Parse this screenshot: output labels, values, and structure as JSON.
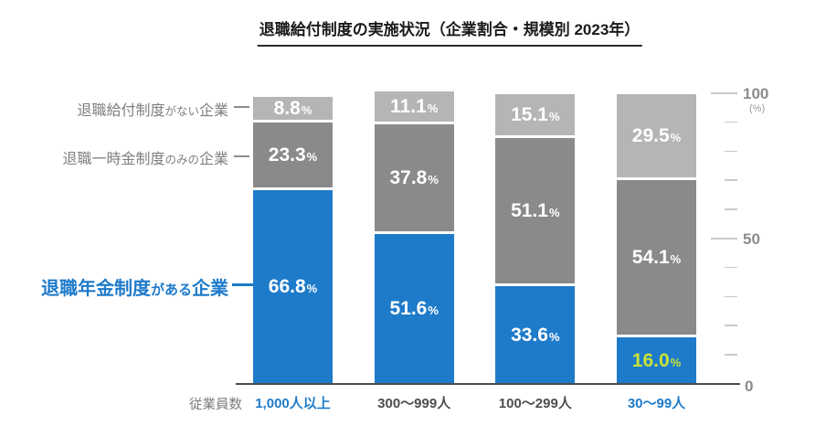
{
  "title": "退職給付制度の実施状況（企業割合・規模別 2023年）",
  "percent_suffix": "%",
  "legend": {
    "no_plan": {
      "part1": "退職給付制度",
      "part2": "がない",
      "part3": "企業"
    },
    "lump_sum_only": {
      "part1": "退職一時金制度",
      "part2": "のみの",
      "part3": "企業"
    },
    "pension": {
      "part1": "退職年金制度",
      "part2": "がある",
      "part3": "企業"
    }
  },
  "x_axis": {
    "label": "従業員数"
  },
  "y_axis": {
    "top": "100",
    "unit": "(%)",
    "mid": "50",
    "bottom": "0"
  },
  "colors": {
    "bar_blue": "#1e7bca",
    "bar_dark_gray": "#8a8a8a",
    "bar_light_gray": "#b5b5b5",
    "highlight_value_text": "#c9e335",
    "category_blue": "#1e7bca",
    "category_gray": "#4d4d4d"
  },
  "chart_data": {
    "type": "bar",
    "stacked": true,
    "title": "退職給付制度の実施状況（企業割合・規模別 2023年）",
    "categories": [
      "1,000人以上",
      "300〜999人",
      "100〜299人",
      "30〜99人"
    ],
    "category_colors": [
      "#1e7bca",
      "#4d4d4d",
      "#4d4d4d",
      "#1e7bca"
    ],
    "series": [
      {
        "key": "pension",
        "name": "退職年金制度がある企業",
        "color": "#1e7bca",
        "values": [
          66.8,
          51.6,
          33.6,
          16.0
        ],
        "label_colors": [
          "#ffffff",
          "#ffffff",
          "#ffffff",
          "#c9e335"
        ]
      },
      {
        "key": "lump-sum-only",
        "name": "退職一時金制度のみの企業",
        "color": "#8a8a8a",
        "values": [
          23.3,
          37.8,
          51.1,
          54.1
        ]
      },
      {
        "key": "no-plan",
        "name": "退職給付制度がない企業",
        "color": "#b5b5b5",
        "values": [
          8.8,
          11.1,
          15.1,
          29.5
        ]
      }
    ],
    "xlabel": "従業員数",
    "ylabel": "(%)",
    "ylim": [
      0,
      100
    ],
    "yticks_major": [
      0,
      50,
      100
    ],
    "ytick_minor_step": 10,
    "legend_position": "left",
    "grid": false
  }
}
